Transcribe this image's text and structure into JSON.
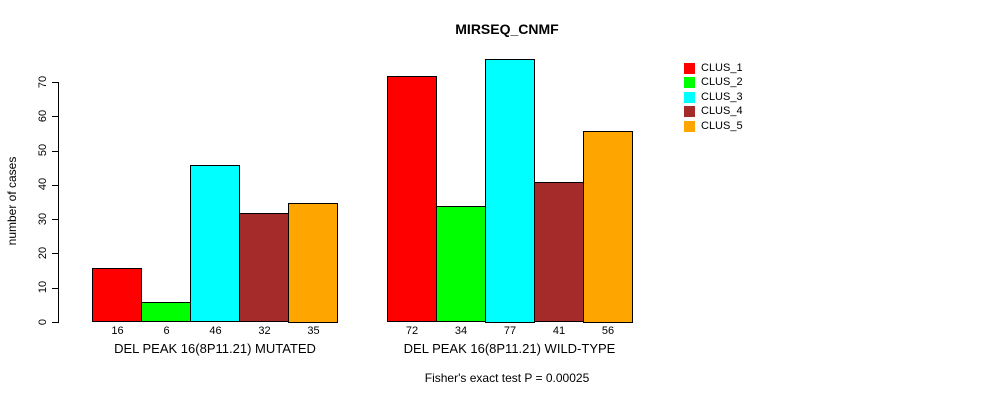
{
  "title": "MIRSEQ_CNMF",
  "caption": "Fisher's exact test P = 0.00025",
  "y_axis": {
    "label": "number of cases",
    "ticks": [
      0,
      10,
      20,
      30,
      40,
      50,
      60,
      70
    ]
  },
  "legend": {
    "entries": [
      {
        "label": "CLUS_1",
        "color": "#FF0000"
      },
      {
        "label": "CLUS_2",
        "color": "#00FF00"
      },
      {
        "label": "CLUS_3",
        "color": "#00FFFF"
      },
      {
        "label": "CLUS_4",
        "color": "#A52A2A"
      },
      {
        "label": "CLUS_5",
        "color": "#FFA500"
      }
    ]
  },
  "chart_data": {
    "type": "bar",
    "title": "MIRSEQ_CNMF",
    "xlabel": "",
    "ylabel": "number of cases",
    "ylim": [
      0,
      77
    ],
    "grid": false,
    "legend_position": "right",
    "series": [
      "CLUS_1",
      "CLUS_2",
      "CLUS_3",
      "CLUS_4",
      "CLUS_5"
    ],
    "colors": [
      "#FF0000",
      "#00FF00",
      "#00FFFF",
      "#A52A2A",
      "#FFA500"
    ],
    "groups": [
      {
        "label": "DEL PEAK 16(8P11.21) MUTATED",
        "values": [
          16,
          6,
          46,
          32,
          35
        ]
      },
      {
        "label": "DEL PEAK 16(8P11.21) WILD-TYPE",
        "values": [
          72,
          34,
          77,
          41,
          56
        ]
      }
    ],
    "bar_value_labels_shown": true,
    "annotation": "Fisher's exact test P = 0.00025"
  }
}
